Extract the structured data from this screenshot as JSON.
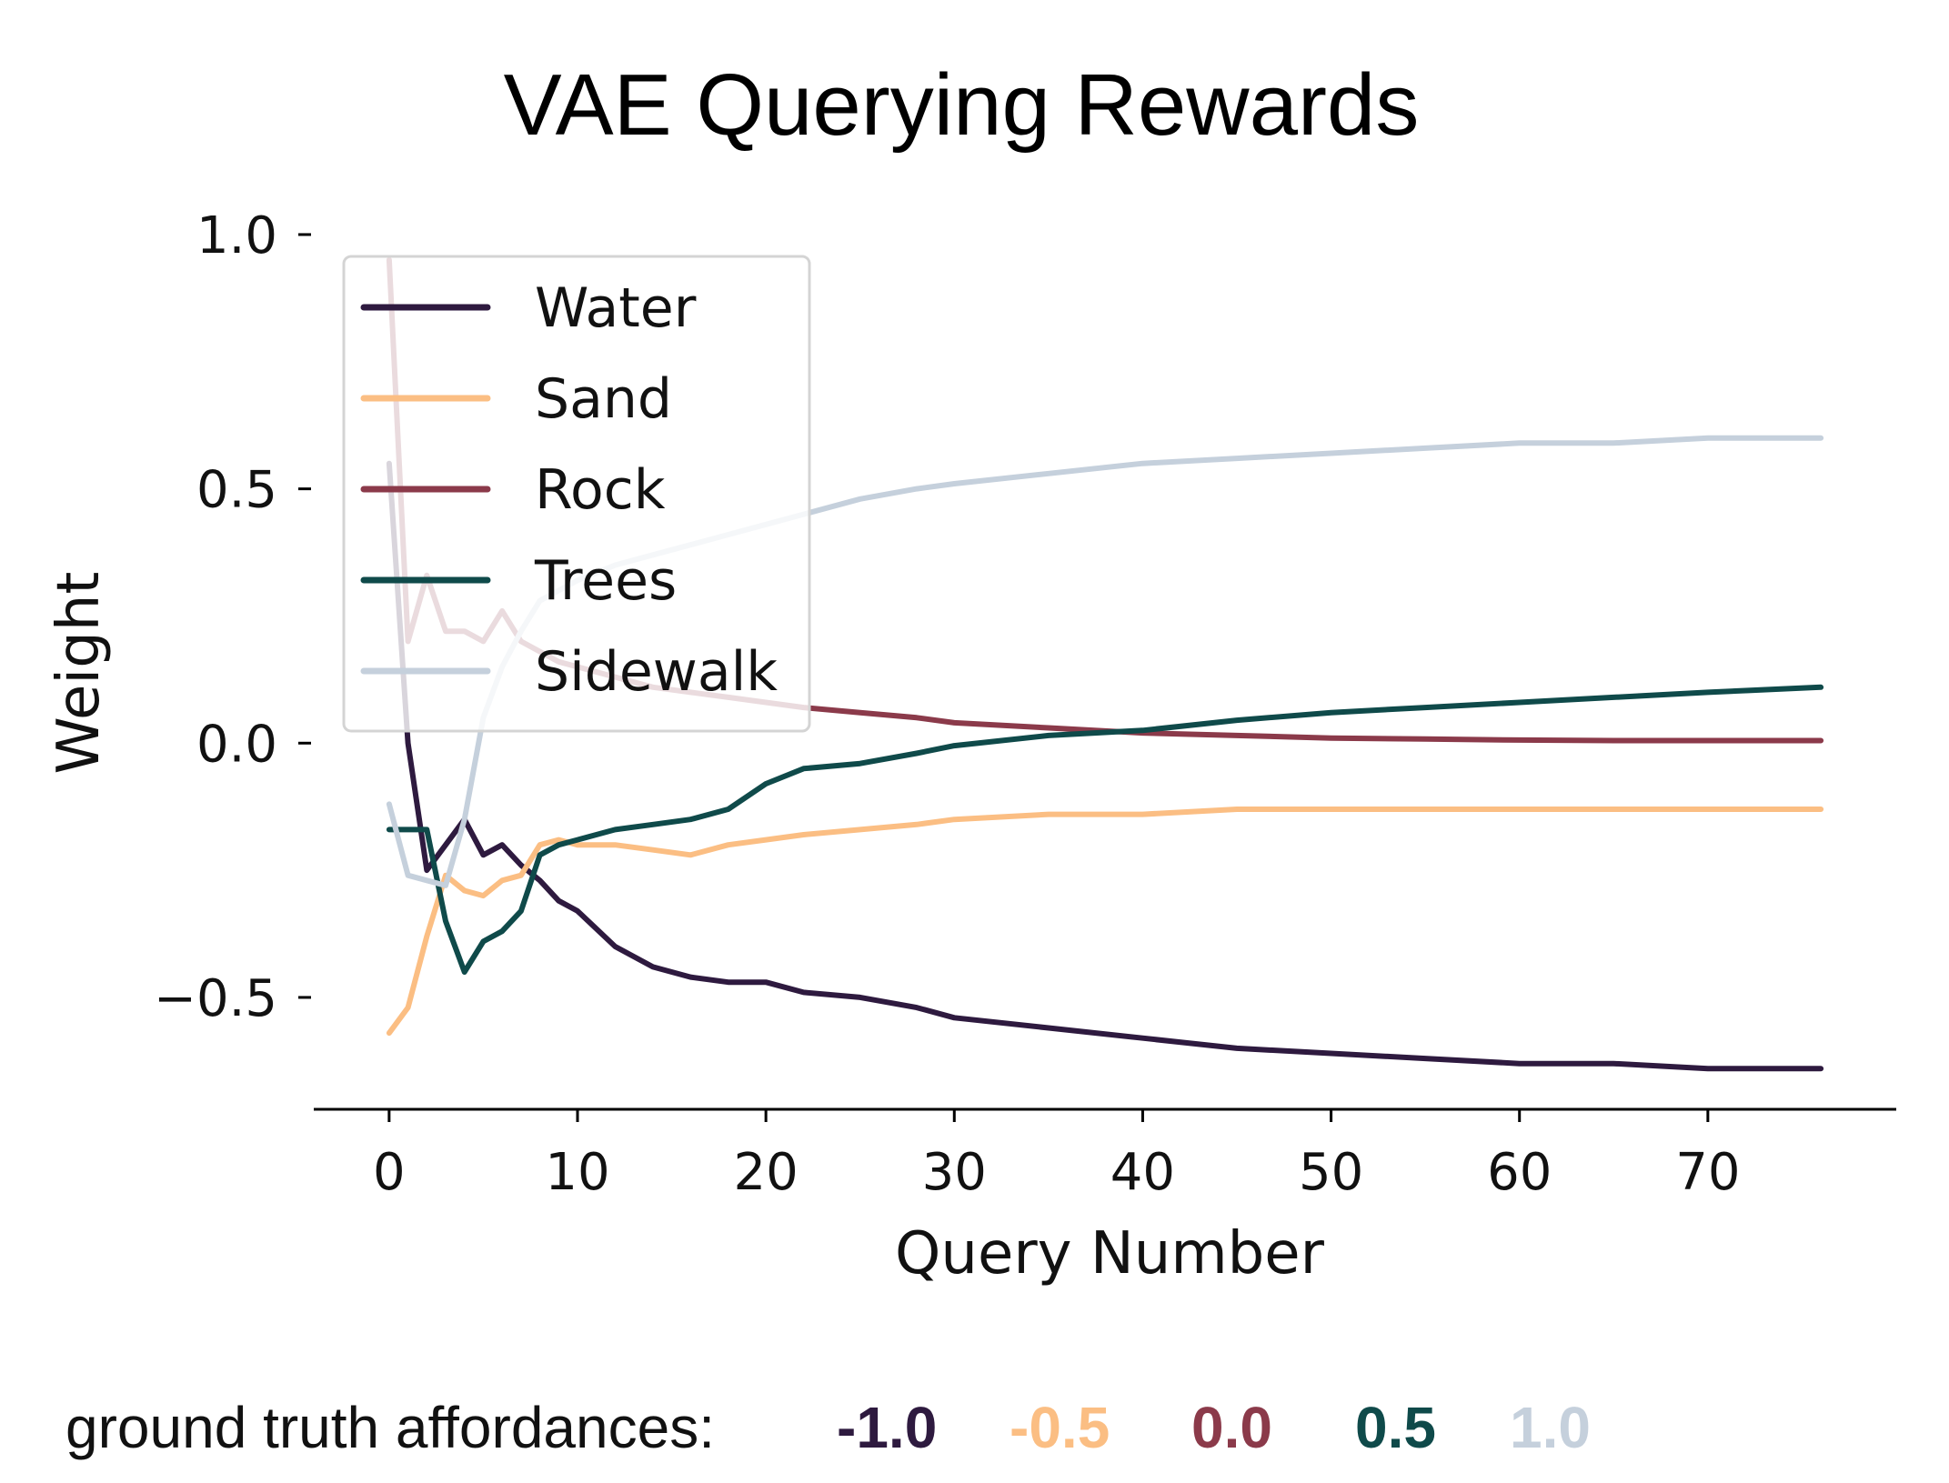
{
  "chart_data": {
    "type": "line",
    "title": "VAE Querying Rewards",
    "xlabel": "Query Number",
    "ylabel": "Weight",
    "xlim": [
      -4,
      80
    ],
    "ylim": [
      -0.72,
      1.05
    ],
    "xticks": [
      0,
      10,
      20,
      30,
      40,
      50,
      60,
      70
    ],
    "yticks": [
      1.0,
      0.5,
      0.0,
      -0.5
    ],
    "ytick_labels": [
      "1.0",
      "0.5",
      "0.0",
      "−0.5"
    ],
    "legend_position": "upper-left",
    "series": [
      {
        "name": "Water",
        "color": "#2e1a3f",
        "x": [
          0,
          1,
          2,
          3,
          4,
          5,
          6,
          7,
          8,
          9,
          10,
          12,
          14,
          16,
          18,
          20,
          22,
          25,
          28,
          30,
          35,
          40,
          45,
          50,
          55,
          60,
          65,
          70,
          76
        ],
        "y": [
          0.55,
          0.0,
          -0.25,
          -0.2,
          -0.15,
          -0.22,
          -0.2,
          -0.24,
          -0.27,
          -0.31,
          -0.33,
          -0.4,
          -0.44,
          -0.46,
          -0.47,
          -0.47,
          -0.49,
          -0.5,
          -0.52,
          -0.54,
          -0.56,
          -0.58,
          -0.6,
          -0.61,
          -0.62,
          -0.63,
          -0.63,
          -0.64,
          -0.64
        ]
      },
      {
        "name": "Sand",
        "color": "#fbbe83",
        "x": [
          0,
          1,
          2,
          3,
          4,
          5,
          6,
          7,
          8,
          9,
          10,
          12,
          14,
          16,
          18,
          20,
          22,
          25,
          28,
          30,
          35,
          40,
          45,
          50,
          55,
          60,
          65,
          70,
          76
        ],
        "y": [
          -0.57,
          -0.52,
          -0.38,
          -0.26,
          -0.29,
          -0.3,
          -0.27,
          -0.26,
          -0.2,
          -0.19,
          -0.2,
          -0.2,
          -0.21,
          -0.22,
          -0.2,
          -0.19,
          -0.18,
          -0.17,
          -0.16,
          -0.15,
          -0.14,
          -0.14,
          -0.13,
          -0.13,
          -0.13,
          -0.13,
          -0.13,
          -0.13,
          -0.13
        ]
      },
      {
        "name": "Rock",
        "color": "#8b3a4a",
        "x": [
          0,
          1,
          2,
          3,
          4,
          5,
          6,
          7,
          8,
          9,
          10,
          12,
          14,
          16,
          18,
          20,
          22,
          25,
          28,
          30,
          35,
          40,
          45,
          50,
          55,
          60,
          65,
          70,
          76
        ],
        "y": [
          0.95,
          0.2,
          0.33,
          0.22,
          0.22,
          0.2,
          0.26,
          0.2,
          0.18,
          0.16,
          0.15,
          0.13,
          0.11,
          0.1,
          0.09,
          0.08,
          0.07,
          0.06,
          0.05,
          0.04,
          0.03,
          0.02,
          0.015,
          0.01,
          0.008,
          0.006,
          0.005,
          0.005,
          0.005
        ]
      },
      {
        "name": "Trees",
        "color": "#0f4a4a",
        "x": [
          0,
          1,
          2,
          3,
          4,
          5,
          6,
          7,
          8,
          9,
          10,
          12,
          14,
          16,
          18,
          20,
          22,
          25,
          28,
          30,
          35,
          40,
          45,
          50,
          55,
          60,
          65,
          70,
          76
        ],
        "y": [
          -0.17,
          -0.17,
          -0.17,
          -0.35,
          -0.45,
          -0.39,
          -0.37,
          -0.33,
          -0.22,
          -0.2,
          -0.19,
          -0.17,
          -0.16,
          -0.15,
          -0.13,
          -0.08,
          -0.05,
          -0.04,
          -0.02,
          -0.005,
          0.015,
          0.025,
          0.045,
          0.06,
          0.07,
          0.08,
          0.09,
          0.1,
          0.11
        ]
      },
      {
        "name": "Sidewalk",
        "color": "#c5d0dc",
        "x": [
          0,
          1,
          2,
          3,
          4,
          5,
          6,
          7,
          8,
          9,
          10,
          12,
          14,
          16,
          18,
          20,
          22,
          25,
          28,
          30,
          35,
          40,
          45,
          50,
          55,
          60,
          65,
          70,
          76
        ],
        "y": [
          -0.12,
          -0.26,
          -0.27,
          -0.28,
          -0.15,
          0.05,
          0.15,
          0.22,
          0.28,
          0.3,
          0.32,
          0.35,
          0.37,
          0.39,
          0.41,
          0.43,
          0.45,
          0.48,
          0.5,
          0.51,
          0.53,
          0.55,
          0.56,
          0.57,
          0.58,
          0.59,
          0.59,
          0.6,
          0.6
        ]
      }
    ]
  },
  "footer": {
    "label": "ground truth affordances:",
    "values": [
      {
        "text": "-1.0",
        "color": "#2e1a3f"
      },
      {
        "text": "-0.5",
        "color": "#fbbe83"
      },
      {
        "text": "0.0",
        "color": "#8b3a4a"
      },
      {
        "text": "0.5",
        "color": "#0f4a4a"
      },
      {
        "text": "1.0",
        "color": "#c5d0dc"
      }
    ]
  }
}
